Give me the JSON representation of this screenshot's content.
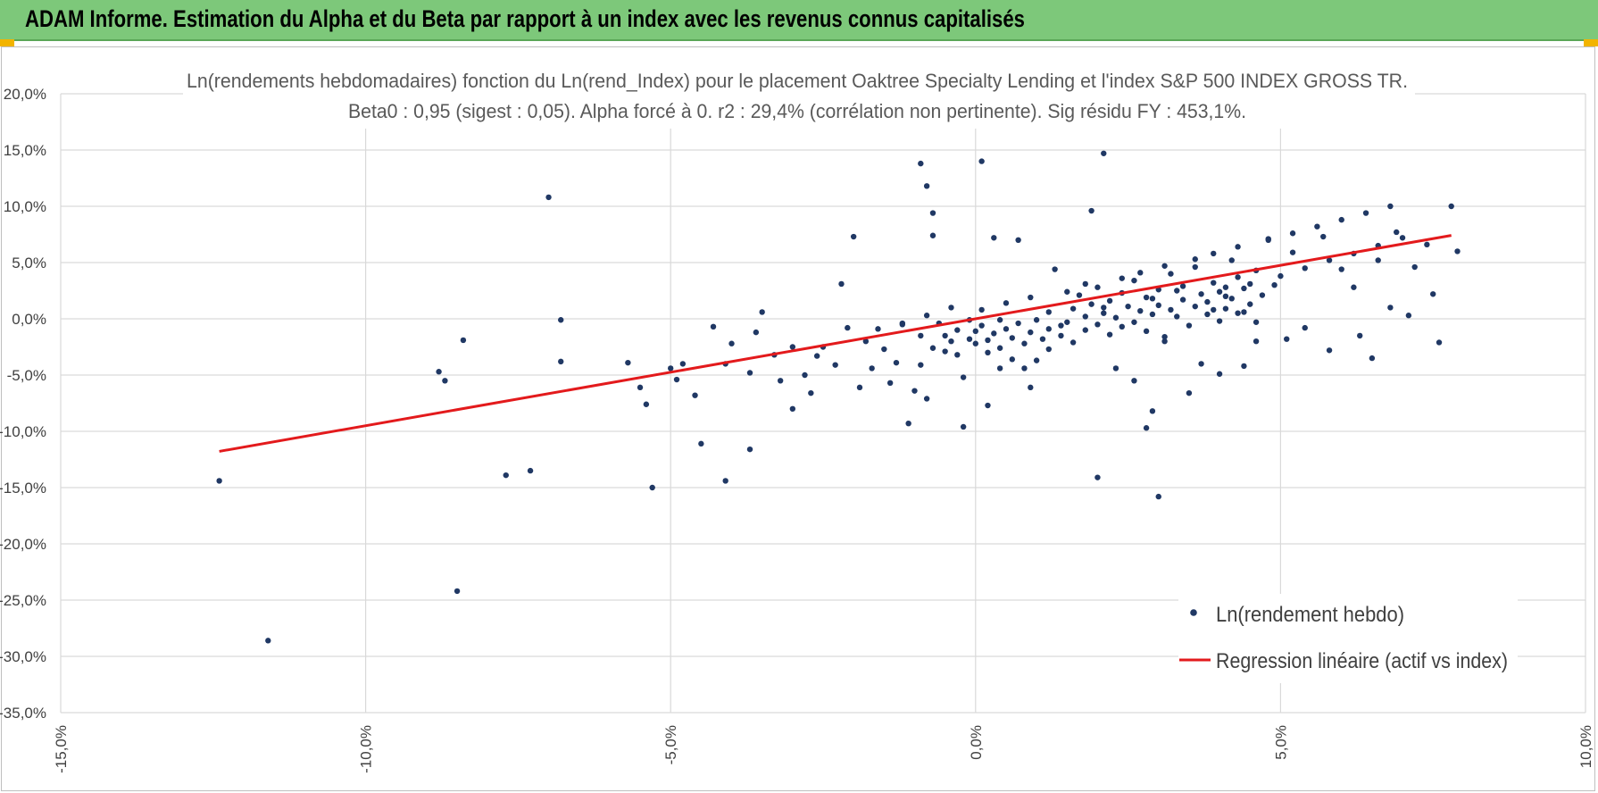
{
  "header": {
    "title": "ADAM Informe. Estimation du Alpha et du Beta par rapport à un index avec les revenus connus capitalisés"
  },
  "colors": {
    "header_bg": "#7dc87a",
    "points": "#203864",
    "regression": "#e31a1c",
    "grid": "#d9d9d9"
  },
  "chart_data": {
    "type": "scatter",
    "title_line1": "Ln(rendements hebdomadaires) fonction du Ln(rend_Index) pour le placement Oaktree Specialty Lending et l'index S&P 500 INDEX GROSS TR.",
    "title_line2": "Beta0 : 0,95 (sigest : 0,05).  Alpha forcé à 0. r2 : 29,4% (corrélation non pertinente). Sig résidu FY : 453,1%.",
    "xlim": [
      -0.15,
      0.1
    ],
    "ylim": [
      -0.35,
      0.2
    ],
    "x_ticks": [
      "-15,0%",
      "-10,0%",
      "-5,0%",
      "0,0%",
      "5,0%",
      "10,0%"
    ],
    "y_ticks": [
      "20,0%",
      "15,0%",
      "10,0%",
      "5,0%",
      "0,0%",
      "-5,0%",
      "-10,0%",
      "-15,0%",
      "-20,0%",
      "-25,0%",
      "-30,0%",
      "-35,0%"
    ],
    "grid": true,
    "legend_position": "bottom-right",
    "series": [
      {
        "name": "Ln(rendement hebdo)",
        "kind": "scatter",
        "points": [
          [
            -0.124,
            -0.144
          ],
          [
            -0.116,
            -0.286
          ],
          [
            -0.088,
            -0.047
          ],
          [
            -0.087,
            -0.055
          ],
          [
            -0.085,
            -0.242
          ],
          [
            -0.084,
            -0.019
          ],
          [
            -0.077,
            -0.139
          ],
          [
            -0.073,
            -0.135
          ],
          [
            -0.07,
            0.108
          ],
          [
            -0.068,
            -0.001
          ],
          [
            -0.068,
            -0.038
          ],
          [
            -0.057,
            -0.039
          ],
          [
            -0.055,
            -0.061
          ],
          [
            -0.054,
            -0.076
          ],
          [
            -0.053,
            -0.15
          ],
          [
            -0.05,
            -0.044
          ],
          [
            -0.049,
            -0.054
          ],
          [
            -0.048,
            -0.04
          ],
          [
            -0.046,
            -0.068
          ],
          [
            -0.045,
            -0.111
          ],
          [
            -0.043,
            -0.007
          ],
          [
            -0.041,
            -0.144
          ],
          [
            -0.041,
            -0.04
          ],
          [
            -0.04,
            -0.022
          ],
          [
            -0.037,
            -0.116
          ],
          [
            -0.037,
            -0.048
          ],
          [
            -0.036,
            -0.012
          ],
          [
            -0.035,
            0.006
          ],
          [
            -0.033,
            -0.032
          ],
          [
            -0.032,
            -0.055
          ],
          [
            -0.03,
            -0.025
          ],
          [
            -0.03,
            -0.08
          ],
          [
            -0.028,
            -0.05
          ],
          [
            -0.027,
            -0.066
          ],
          [
            -0.026,
            -0.033
          ],
          [
            -0.025,
            -0.025
          ],
          [
            -0.023,
            -0.041
          ],
          [
            -0.022,
            0.031
          ],
          [
            -0.021,
            -0.008
          ],
          [
            -0.02,
            0.073
          ],
          [
            -0.019,
            -0.061
          ],
          [
            -0.018,
            -0.02
          ],
          [
            -0.017,
            -0.044
          ],
          [
            -0.016,
            -0.009
          ],
          [
            -0.015,
            -0.027
          ],
          [
            -0.014,
            -0.057
          ],
          [
            -0.013,
            -0.039
          ],
          [
            -0.012,
            -0.005
          ],
          [
            -0.011,
            -0.093
          ],
          [
            -0.01,
            -0.064
          ],
          [
            -0.009,
            -0.041
          ],
          [
            -0.009,
            -0.015
          ],
          [
            -0.008,
            -0.071
          ],
          [
            -0.007,
            -0.026
          ],
          [
            -0.006,
            -0.004
          ],
          [
            -0.005,
            -0.015
          ],
          [
            -0.005,
            -0.029
          ],
          [
            -0.004,
            -0.02
          ],
          [
            -0.003,
            -0.01
          ],
          [
            -0.003,
            -0.032
          ],
          [
            -0.002,
            -0.096
          ],
          [
            -0.002,
            -0.052
          ],
          [
            -0.001,
            -0.018
          ],
          [
            -0.001,
            -0.001
          ],
          [
            0.0,
            -0.011
          ],
          [
            0.0,
            -0.022
          ],
          [
            0.001,
            -0.006
          ],
          [
            0.002,
            -0.019
          ],
          [
            0.002,
            -0.03
          ],
          [
            0.003,
            -0.013
          ],
          [
            0.004,
            -0.001
          ],
          [
            0.004,
            -0.026
          ],
          [
            0.005,
            -0.009
          ],
          [
            0.006,
            -0.017
          ],
          [
            0.006,
            -0.036
          ],
          [
            0.007,
            -0.004
          ],
          [
            0.008,
            -0.022
          ],
          [
            0.008,
            -0.044
          ],
          [
            0.009,
            -0.012
          ],
          [
            0.01,
            -0.001
          ],
          [
            0.01,
            -0.037
          ],
          [
            0.011,
            -0.018
          ],
          [
            0.012,
            -0.009
          ],
          [
            0.012,
            -0.027
          ],
          [
            0.013,
            0.044
          ],
          [
            0.014,
            -0.006
          ],
          [
            0.014,
            -0.015
          ],
          [
            0.015,
            -0.003
          ],
          [
            0.016,
            -0.021
          ],
          [
            0.016,
            0.009
          ],
          [
            0.017,
            0.021
          ],
          [
            0.018,
            -0.01
          ],
          [
            0.018,
            0.002
          ],
          [
            0.019,
            0.013
          ],
          [
            0.02,
            -0.005
          ],
          [
            0.02,
            0.028
          ],
          [
            0.021,
            0.005
          ],
          [
            0.022,
            -0.014
          ],
          [
            0.022,
            0.016
          ],
          [
            0.023,
            0.001
          ],
          [
            0.024,
            0.023
          ],
          [
            0.024,
            -0.007
          ],
          [
            0.025,
            0.011
          ],
          [
            0.026,
            0.034
          ],
          [
            0.026,
            -0.003
          ],
          [
            0.027,
            0.007
          ],
          [
            0.028,
            0.019
          ],
          [
            0.028,
            -0.011
          ],
          [
            0.029,
            0.004
          ],
          [
            0.03,
            0.026
          ],
          [
            0.03,
            0.012
          ],
          [
            0.031,
            -0.016
          ],
          [
            0.032,
            0.008
          ],
          [
            0.032,
            0.04
          ],
          [
            0.033,
            0.002
          ],
          [
            0.034,
            0.017
          ],
          [
            0.034,
            0.029
          ],
          [
            0.035,
            -0.006
          ],
          [
            0.036,
            0.011
          ],
          [
            0.036,
            0.046
          ],
          [
            0.037,
            0.022
          ],
          [
            0.038,
            0.004
          ],
          [
            0.038,
            0.015
          ],
          [
            0.039,
            0.032
          ],
          [
            0.04,
            -0.002
          ],
          [
            0.04,
            0.024
          ],
          [
            0.041,
            0.009
          ],
          [
            0.042,
            0.052
          ],
          [
            0.042,
            0.018
          ],
          [
            0.043,
            0.037
          ],
          [
            0.044,
            0.006
          ],
          [
            0.044,
            0.027
          ],
          [
            0.045,
            0.013
          ],
          [
            0.046,
            0.043
          ],
          [
            0.046,
            -0.02
          ],
          [
            0.047,
            0.021
          ],
          [
            -0.012,
            -0.004
          ],
          [
            -0.008,
            0.003
          ],
          [
            -0.004,
            0.01
          ],
          [
            0.001,
            0.008
          ],
          [
            0.005,
            0.014
          ],
          [
            0.009,
            0.019
          ],
          [
            0.012,
            0.006
          ],
          [
            0.015,
            0.024
          ],
          [
            0.018,
            0.031
          ],
          [
            0.021,
            0.01
          ],
          [
            0.024,
            0.036
          ],
          [
            0.027,
            0.041
          ],
          [
            0.029,
            0.018
          ],
          [
            0.031,
            0.047
          ],
          [
            0.033,
            0.025
          ],
          [
            0.036,
            0.053
          ],
          [
            0.039,
            0.058
          ],
          [
            0.041,
            0.02
          ],
          [
            0.043,
            0.064
          ],
          [
            0.045,
            0.031
          ],
          [
            0.048,
            0.07
          ],
          [
            0.05,
            0.038
          ],
          [
            0.052,
            0.076
          ],
          [
            0.054,
            0.045
          ],
          [
            0.056,
            0.082
          ],
          [
            0.058,
            0.052
          ],
          [
            0.06,
            0.088
          ],
          [
            0.062,
            0.058
          ],
          [
            0.064,
            0.094
          ],
          [
            0.066,
            0.065
          ],
          [
            0.068,
            0.1
          ],
          [
            0.07,
            0.072
          ],
          [
            -0.009,
            0.138
          ],
          [
            -0.008,
            0.118
          ],
          [
            -0.007,
            0.094
          ],
          [
            -0.007,
            0.074
          ],
          [
            0.001,
            0.14
          ],
          [
            0.003,
            0.072
          ],
          [
            0.007,
            0.07
          ],
          [
            0.009,
            -0.061
          ],
          [
            0.002,
            -0.077
          ],
          [
            0.004,
            -0.044
          ],
          [
            0.019,
            0.096
          ],
          [
            0.021,
            0.147
          ],
          [
            0.02,
            -0.141
          ],
          [
            0.023,
            -0.044
          ],
          [
            0.026,
            -0.055
          ],
          [
            0.028,
            -0.097
          ],
          [
            0.029,
            -0.082
          ],
          [
            0.03,
            -0.158
          ],
          [
            0.031,
            -0.02
          ],
          [
            0.035,
            -0.066
          ],
          [
            0.037,
            -0.04
          ],
          [
            0.039,
            0.008
          ],
          [
            0.04,
            -0.049
          ],
          [
            0.041,
            0.028
          ],
          [
            0.043,
            0.005
          ],
          [
            0.044,
            -0.042
          ],
          [
            0.046,
            -0.003
          ],
          [
            0.048,
            0.071
          ],
          [
            0.049,
            0.03
          ],
          [
            0.051,
            -0.018
          ],
          [
            0.052,
            0.059
          ],
          [
            0.054,
            -0.008
          ],
          [
            0.057,
            0.073
          ],
          [
            0.058,
            -0.028
          ],
          [
            0.06,
            0.044
          ],
          [
            0.062,
            0.028
          ],
          [
            0.063,
            -0.015
          ],
          [
            0.065,
            -0.035
          ],
          [
            0.066,
            0.052
          ],
          [
            0.068,
            0.01
          ],
          [
            0.069,
            0.077
          ],
          [
            0.071,
            0.003
          ],
          [
            0.072,
            0.046
          ],
          [
            0.074,
            0.066
          ],
          [
            0.075,
            0.022
          ],
          [
            0.076,
            -0.021
          ],
          [
            0.078,
            0.1
          ],
          [
            0.079,
            0.06
          ]
        ]
      },
      {
        "name": "Regression linéaire (actif vs index)",
        "kind": "line",
        "slope": 0.95,
        "x_range": [
          -0.124,
          0.078
        ]
      }
    ]
  }
}
